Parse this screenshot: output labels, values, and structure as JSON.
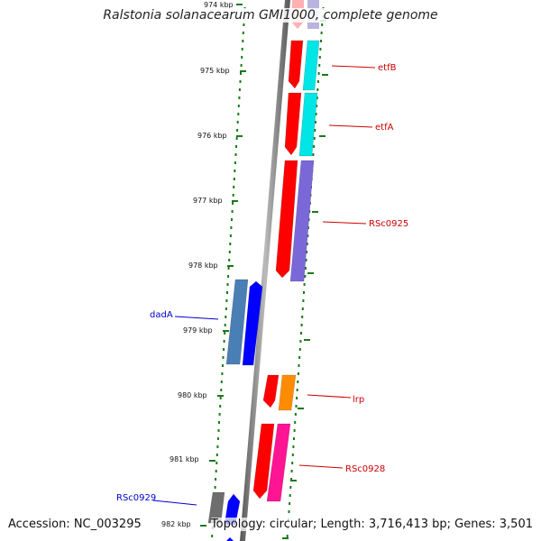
{
  "title": "Ralstonia solanacearum GMI1000, complete genome",
  "footer": {
    "accession": "Accession: NC_003295",
    "summary": "Topology: circular; Length: 3,716,413 bp; Genes: 3,501"
  },
  "axis_ticks": [
    "974 kbp",
    "975 kbp",
    "976 kbp",
    "977 kbp",
    "978 kbp",
    "979 kbp",
    "980 kbp",
    "981 kbp",
    "982 kbp"
  ],
  "genes": [
    {
      "label": "etfB",
      "strand": "reverse",
      "color_inner": "#ff0000",
      "color_outer": "#00e5e5"
    },
    {
      "label": "etfA",
      "strand": "reverse",
      "color_inner": "#ff0000",
      "color_outer": "#00e5e5"
    },
    {
      "label": "RSc0925",
      "strand": "reverse",
      "color_inner": "#ff0000",
      "color_outer": "#7b68d8"
    },
    {
      "label": "dadA",
      "strand": "forward",
      "color_inner": "#0000ff",
      "color_outer": "#4a7fb5"
    },
    {
      "label": "lrp",
      "strand": "reverse",
      "color_inner": "#ff0000",
      "color_outer": "#ff8c00"
    },
    {
      "label": "RSc0928",
      "strand": "reverse",
      "color_inner": "#ff0000",
      "color_outer": "#ff1493"
    },
    {
      "label": "RSc0929",
      "strand": "forward",
      "color_inner": "#0000ff",
      "color_outer": "#6e6e6e"
    }
  ],
  "colors": {
    "backbone": "#8a8a8a",
    "tick": "#1a7a1a",
    "reverse_label": "#cc0000",
    "forward_label": "#0000cc"
  }
}
